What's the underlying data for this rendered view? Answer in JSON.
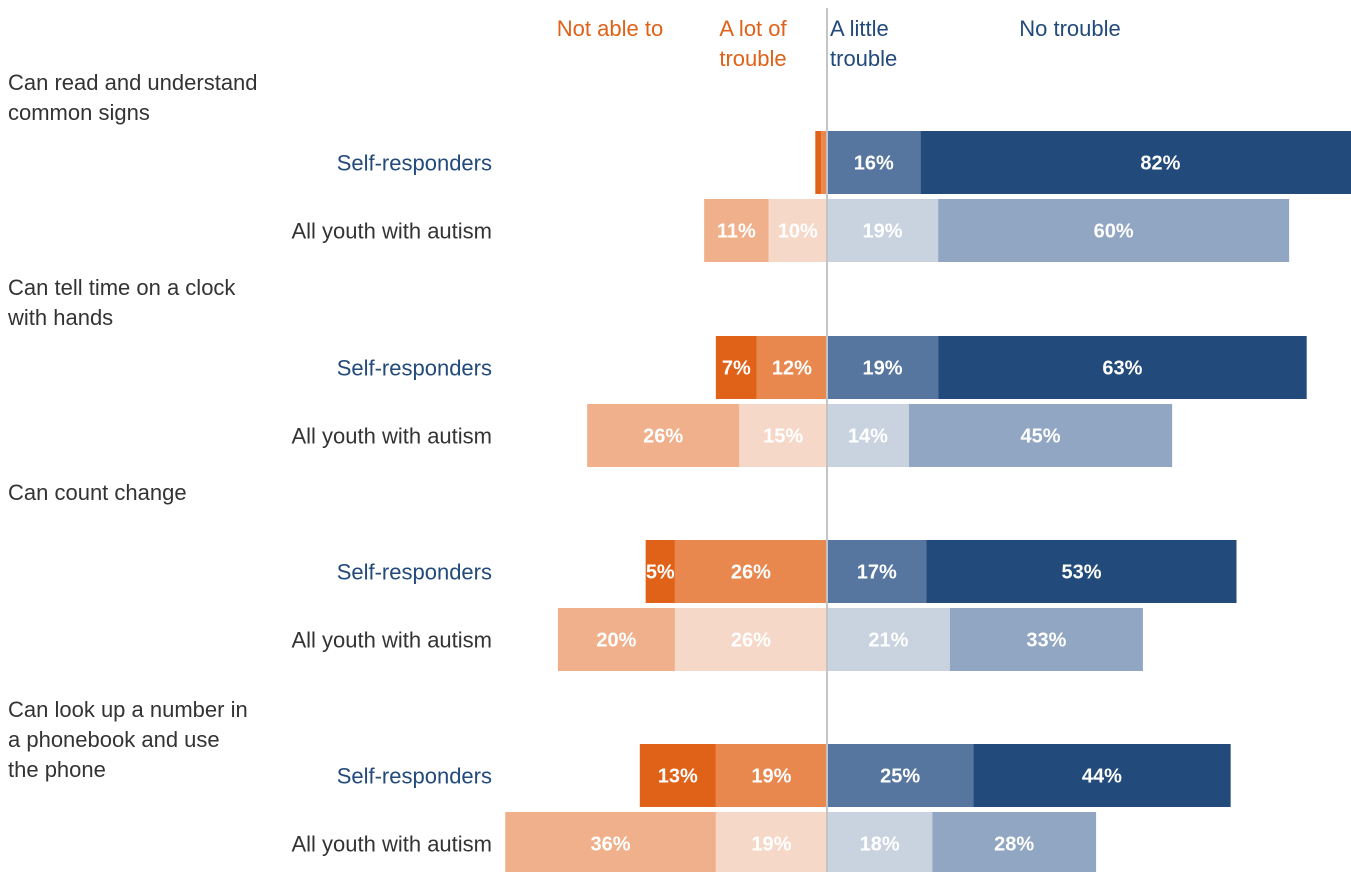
{
  "chart_data": {
    "type": "bar",
    "orientation": "horizontal",
    "layout": "diverging-stacked",
    "legend_position": "top",
    "grid": false,
    "categories": [
      {
        "item": "Can read and understand common signs",
        "item_lines": [
          "Can read and understand",
          "common signs"
        ]
      },
      {
        "item": "Can tell time on a clock with hands",
        "item_lines": [
          "Can tell time on a clock",
          "with hands"
        ]
      },
      {
        "item": "Can count change",
        "item_lines": [
          "Can count change"
        ]
      },
      {
        "item": "Can look up a number in a phonebook and use the phone",
        "item_lines": [
          "Can look up a number in",
          "a phonebook and use",
          "the phone"
        ]
      }
    ],
    "series": [
      {
        "name": "Not able to",
        "side": "negative",
        "name_lines": [
          "Not able to"
        ]
      },
      {
        "name": "A lot of trouble",
        "side": "negative",
        "name_lines": [
          "A lot of",
          "trouble"
        ]
      },
      {
        "name": "A little trouble",
        "side": "positive",
        "name_lines": [
          "A little",
          "trouble"
        ]
      },
      {
        "name": "No trouble",
        "side": "positive",
        "name_lines": [
          "No trouble"
        ]
      }
    ],
    "groups": [
      {
        "label": "Self-responders",
        "label_color": "#224a7a"
      },
      {
        "label": "All youth with autism",
        "label_color": "#333333"
      }
    ],
    "values": [
      [
        [
          1,
          1,
          16,
          82
        ],
        [
          11,
          10,
          19,
          60
        ]
      ],
      [
        [
          7,
          12,
          19,
          63
        ],
        [
          26,
          15,
          14,
          45
        ]
      ],
      [
        [
          5,
          26,
          17,
          53
        ],
        [
          20,
          26,
          21,
          33
        ]
      ],
      [
        [
          13,
          19,
          25,
          44
        ],
        [
          36,
          19,
          18,
          28
        ]
      ]
    ],
    "data_labels": [
      [
        [
          "",
          "",
          "16%",
          "82%"
        ],
        [
          "11%",
          "10%",
          "19%",
          "60%"
        ]
      ],
      [
        [
          "7%",
          "12%",
          "19%",
          "63%"
        ],
        [
          "26%",
          "15%",
          "14%",
          "45%"
        ]
      ],
      [
        [
          "5%",
          "26%",
          "17%",
          "53%"
        ],
        [
          "20%",
          "26%",
          "21%",
          "33%"
        ]
      ],
      [
        [
          "13%",
          "19%",
          "25%",
          "44%"
        ],
        [
          "36%",
          "19%",
          "18%",
          "28%"
        ]
      ]
    ],
    "colors": {
      "self": [
        "#e06118",
        "#e8884e",
        "#56769f",
        "#224a7a"
      ],
      "all": [
        "#f0b08c",
        "#f6d8c8",
        "#c9d3e0",
        "#91a6c2"
      ],
      "legend_negative": "#e06118",
      "legend_positive": "#224a7a",
      "item_label": "#333333",
      "center_line": "#c4c4c4"
    }
  }
}
